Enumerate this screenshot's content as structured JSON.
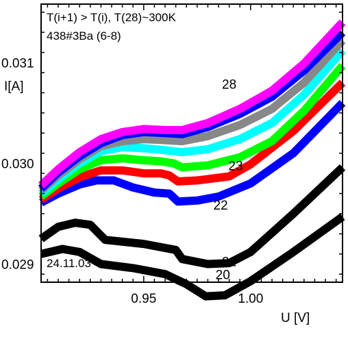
{
  "chart_data": {
    "type": "line",
    "annotations": [
      "T(i+1) > T(i), T(28)~300K",
      "438#3Ba (6-8)"
    ],
    "date_label": "24.11.03",
    "xlabel": "U [V]",
    "ylabel": "I[A]",
    "xlim": [
      0.902,
      1.043
    ],
    "ylim": [
      0.02882,
      0.03158
    ],
    "x_ticks": [
      {
        "value": 0.95,
        "label": "0.95"
      },
      {
        "value": 1.0,
        "label": "1.00"
      }
    ],
    "y_ticks": [
      {
        "value": 0.029,
        "label": "0.029"
      },
      {
        "value": 0.03,
        "label": "0.030"
      },
      {
        "value": 0.031,
        "label": "0.031"
      }
    ],
    "grid": false,
    "series": [
      {
        "name": "20",
        "color": "#000000",
        "label_pos": [
          0.987,
          0.02885
        ],
        "points": [
          [
            0.902,
            0.0291
          ],
          [
            0.912,
            0.02915
          ],
          [
            0.92,
            0.02912
          ],
          [
            0.93,
            0.029
          ],
          [
            0.945,
            0.02896
          ],
          [
            0.96,
            0.0289
          ],
          [
            0.97,
            0.0288
          ],
          [
            0.979,
            0.02868
          ],
          [
            0.988,
            0.02869
          ],
          [
            1.0,
            0.02883
          ],
          [
            1.02,
            0.02912
          ],
          [
            1.043,
            0.02947
          ]
        ]
      },
      {
        "name": "21",
        "color": "#000000",
        "label_pos": [
          0.99,
          0.02898
        ],
        "points": [
          [
            0.902,
            0.02925
          ],
          [
            0.91,
            0.02937
          ],
          [
            0.918,
            0.02941
          ],
          [
            0.925,
            0.02939
          ],
          [
            0.932,
            0.02924
          ],
          [
            0.95,
            0.0292
          ],
          [
            0.965,
            0.02914
          ],
          [
            0.968,
            0.02905
          ],
          [
            0.98,
            0.029
          ],
          [
            0.99,
            0.02901
          ],
          [
            1.0,
            0.02912
          ],
          [
            1.02,
            0.0295
          ],
          [
            1.043,
            0.02996
          ]
        ]
      },
      {
        "name": "22",
        "color": "#0000ff",
        "label_pos": [
          0.986,
          0.02954
        ],
        "points": [
          [
            0.902,
            0.02961
          ],
          [
            0.91,
            0.0297
          ],
          [
            0.92,
            0.02979
          ],
          [
            0.928,
            0.02983
          ],
          [
            0.936,
            0.02983
          ],
          [
            0.945,
            0.02976
          ],
          [
            0.955,
            0.02971
          ],
          [
            0.962,
            0.0297
          ],
          [
            0.966,
            0.02962
          ],
          [
            0.975,
            0.02963
          ],
          [
            0.985,
            0.02967
          ],
          [
            1.0,
            0.0298
          ],
          [
            1.02,
            0.0301
          ],
          [
            1.043,
            0.0306
          ]
        ]
      },
      {
        "name": "23",
        "color": "#ff0000",
        "label_pos": [
          0.993,
          0.02993
        ],
        "points": [
          [
            0.902,
            0.02964
          ],
          [
            0.91,
            0.02975
          ],
          [
            0.92,
            0.02986
          ],
          [
            0.93,
            0.02993
          ],
          [
            0.94,
            0.02993
          ],
          [
            0.95,
            0.0299
          ],
          [
            0.958,
            0.0299
          ],
          [
            0.962,
            0.02988
          ],
          [
            0.966,
            0.02982
          ],
          [
            0.975,
            0.02983
          ],
          [
            0.99,
            0.02987
          ],
          [
            1.0,
            0.02999
          ],
          [
            1.02,
            0.03032
          ],
          [
            1.043,
            0.0308
          ]
        ]
      },
      {
        "name": "",
        "color": "#00ff00",
        "points": [
          [
            0.902,
            0.02967
          ],
          [
            0.91,
            0.0298
          ],
          [
            0.92,
            0.02994
          ],
          [
            0.93,
            0.03003
          ],
          [
            0.94,
            0.03005
          ],
          [
            0.95,
            0.03003
          ],
          [
            0.958,
            0.03002
          ],
          [
            0.964,
            0.03
          ],
          [
            0.968,
            0.02996
          ],
          [
            0.98,
            0.02998
          ],
          [
            0.995,
            0.03006
          ],
          [
            1.01,
            0.03022
          ],
          [
            1.025,
            0.03052
          ],
          [
            1.043,
            0.03097
          ]
        ]
      },
      {
        "name": "",
        "color": "#00ffff",
        "points": [
          [
            0.902,
            0.0297
          ],
          [
            0.91,
            0.02984
          ],
          [
            0.92,
            0.03
          ],
          [
            0.93,
            0.03012
          ],
          [
            0.94,
            0.03016
          ],
          [
            0.95,
            0.03015
          ],
          [
            0.96,
            0.03013
          ],
          [
            0.968,
            0.03011
          ],
          [
            0.98,
            0.03014
          ],
          [
            0.995,
            0.03024
          ],
          [
            1.01,
            0.0304
          ],
          [
            1.025,
            0.03068
          ],
          [
            1.043,
            0.03112
          ]
        ]
      },
      {
        "name": "",
        "color": "#888888",
        "points": [
          [
            0.902,
            0.02973
          ],
          [
            0.91,
            0.02988
          ],
          [
            0.92,
            0.03004
          ],
          [
            0.93,
            0.03017
          ],
          [
            0.94,
            0.03022
          ],
          [
            0.95,
            0.03024
          ],
          [
            0.96,
            0.03023
          ],
          [
            0.968,
            0.03022
          ],
          [
            0.98,
            0.03027
          ],
          [
            0.995,
            0.03038
          ],
          [
            1.01,
            0.03054
          ],
          [
            1.025,
            0.0308
          ],
          [
            1.043,
            0.03122
          ]
        ]
      },
      {
        "name": "",
        "color": "#0000ff",
        "points": [
          [
            0.902,
            0.02975
          ],
          [
            0.91,
            0.02991
          ],
          [
            0.92,
            0.03007
          ],
          [
            0.93,
            0.0302
          ],
          [
            0.94,
            0.03028
          ],
          [
            0.95,
            0.03031
          ],
          [
            0.96,
            0.0303
          ],
          [
            0.968,
            0.03029
          ],
          [
            0.98,
            0.03036
          ],
          [
            0.995,
            0.03049
          ],
          [
            1.01,
            0.03066
          ],
          [
            1.025,
            0.03092
          ],
          [
            1.043,
            0.0313
          ]
        ]
      },
      {
        "name": "28",
        "color": "#ff00ff",
        "label_pos": [
          0.99,
          0.03074
        ],
        "points": [
          [
            0.902,
            0.02978
          ],
          [
            0.91,
            0.02994
          ],
          [
            0.92,
            0.03011
          ],
          [
            0.93,
            0.03024
          ],
          [
            0.94,
            0.03031
          ],
          [
            0.95,
            0.03034
          ],
          [
            0.96,
            0.03033
          ],
          [
            0.968,
            0.03033
          ],
          [
            0.98,
            0.0304
          ],
          [
            0.995,
            0.03054
          ],
          [
            1.01,
            0.03072
          ],
          [
            1.025,
            0.03099
          ],
          [
            1.043,
            0.0314
          ]
        ]
      }
    ]
  }
}
